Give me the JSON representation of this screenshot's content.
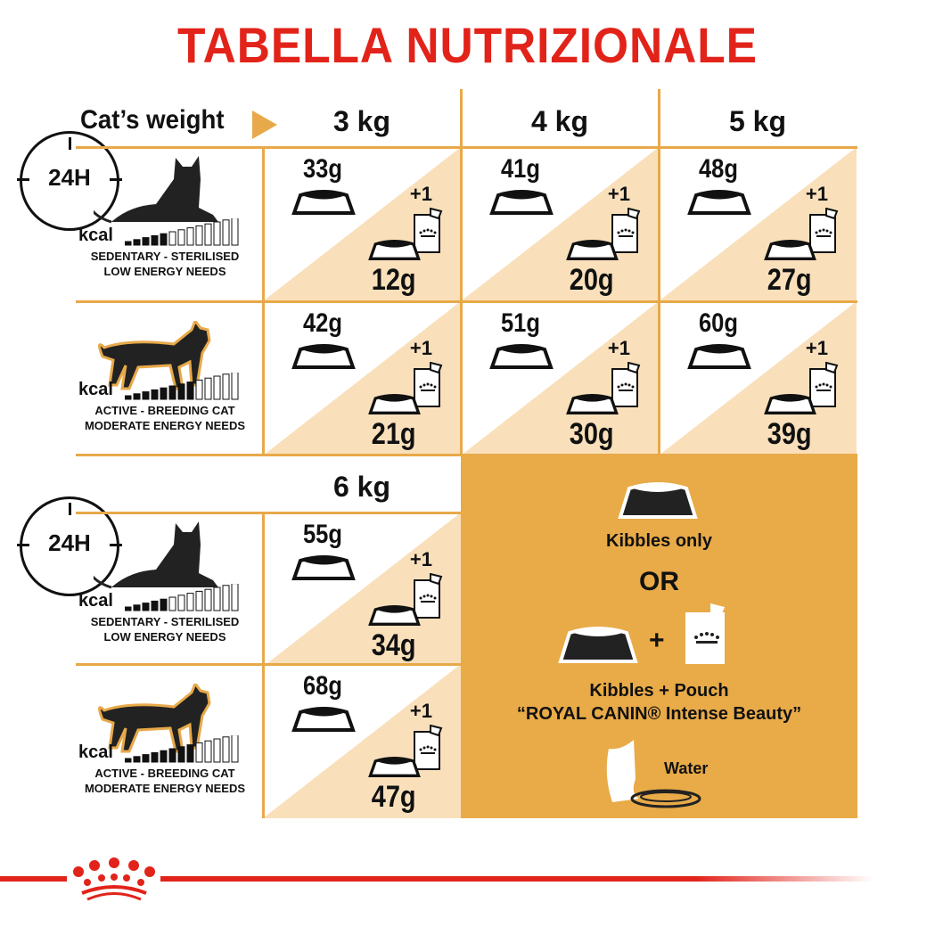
{
  "title": "TABELLA NUTRIZIONALE",
  "header": {
    "cats_weight_label": "Cat’s weight",
    "arrow_icon": "triangle-right-icon",
    "weights": [
      "3 kg",
      "4 kg",
      "5 kg"
    ],
    "weight_6": "6 kg"
  },
  "profiles": [
    {
      "kcal": "kcal",
      "line1": "SEDENTARY - STERILISED",
      "line2": "LOW ENERGY NEEDS",
      "clock": "24H",
      "icon": "lying-cat-icon"
    },
    {
      "kcal": "kcal",
      "line1": "ACTIVE - BREEDING CAT",
      "line2": "MODERATE ENERGY NEEDS",
      "icon": "walking-cat-icon"
    },
    {
      "kcal": "kcal",
      "line1": "SEDENTARY - STERILISED",
      "line2": "LOW ENERGY NEEDS",
      "clock": "24H",
      "icon": "lying-cat-icon"
    },
    {
      "kcal": "kcal",
      "line1": "ACTIVE - BREEDING CAT",
      "line2": "MODERATE ENERGY NEEDS",
      "icon": "walking-cat-icon"
    }
  ],
  "rows": [
    [
      {
        "kibbles": "33g",
        "pouch": "+1",
        "mixed": "12g"
      },
      {
        "kibbles": "41g",
        "pouch": "+1",
        "mixed": "20g"
      },
      {
        "kibbles": "48g",
        "pouch": "+1",
        "mixed": "27g"
      }
    ],
    [
      {
        "kibbles": "42g",
        "pouch": "+1",
        "mixed": "21g"
      },
      {
        "kibbles": "51g",
        "pouch": "+1",
        "mixed": "30g"
      },
      {
        "kibbles": "60g",
        "pouch": "+1",
        "mixed": "39g"
      }
    ],
    [
      {
        "kibbles": "55g",
        "pouch": "+1",
        "mixed": "34g"
      }
    ],
    [
      {
        "kibbles": "68g",
        "pouch": "+1",
        "mixed": "47g"
      }
    ]
  ],
  "legend": {
    "kibbles_only": "Kibbles only",
    "or": "OR",
    "plus": "+",
    "kibbles_pouch": "Kibbles + Pouch",
    "product": "“ROYAL CANIN® Intense Beauty”",
    "water": "Water"
  },
  "colors": {
    "brand_red": "#e2231a",
    "accent_orange": "#e8ab48",
    "light_peach": "#f9e0bb"
  }
}
